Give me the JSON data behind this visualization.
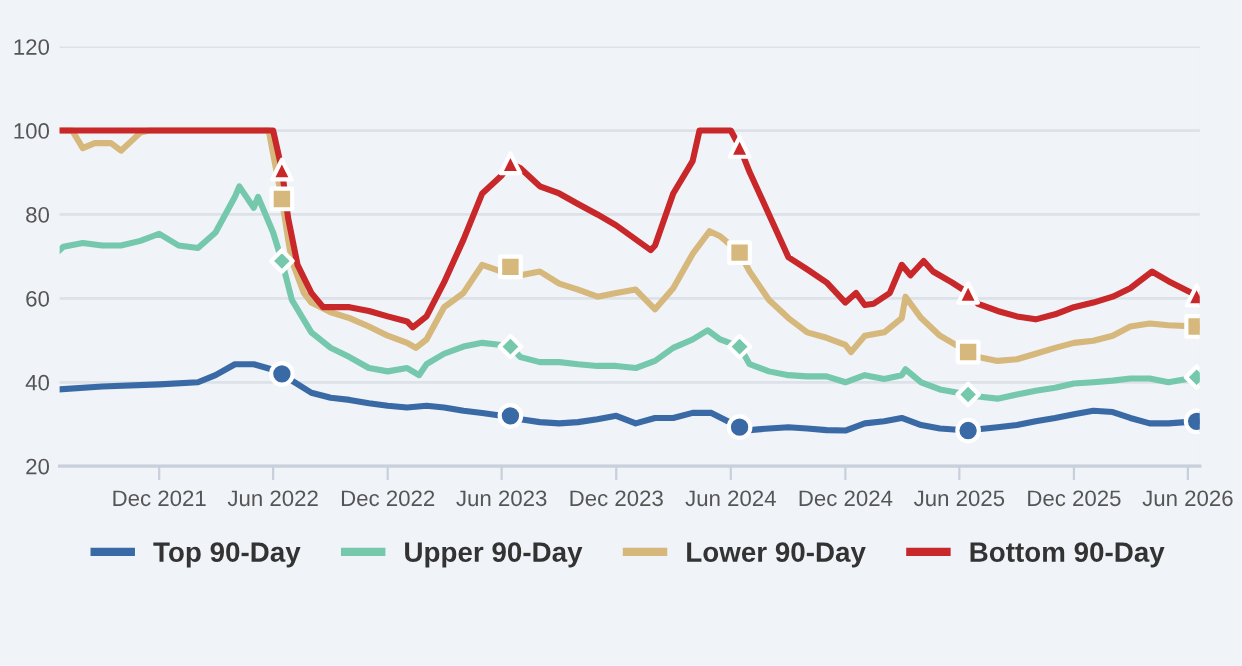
{
  "chart_data": {
    "type": "line",
    "grid": "y",
    "legend": "bottom",
    "line_style": "solid",
    "marker": "none",
    "xlim": [
      "2021-06-25",
      "2026-06-20"
    ],
    "ylim": [
      20,
      120
    ],
    "yticks": [
      20,
      40,
      60,
      80,
      100,
      120
    ],
    "xticks": [
      {
        "value": "2021-12-01",
        "label": "Dec 2021"
      },
      {
        "value": "2022-06-01",
        "label": "Jun 2022"
      },
      {
        "value": "2022-12-01",
        "label": "Dec 2022"
      },
      {
        "value": "2023-06-01",
        "label": "Jun 2023"
      },
      {
        "value": "2023-12-01",
        "label": "Dec 2023"
      },
      {
        "value": "2024-06-01",
        "label": "Jun 2024"
      },
      {
        "value": "2024-12-01",
        "label": "Dec 2024"
      },
      {
        "value": "2025-06-01",
        "label": "Jun 2025"
      },
      {
        "value": "2025-12-01",
        "label": "Dec 2025"
      },
      {
        "value": "2026-06-01",
        "label": "Jun 2026"
      }
    ],
    "series": [
      {
        "name": "Top 90-Day",
        "color": "#3a6aa6",
        "x": [
          "2021-06-25",
          "2021-09-01",
          "2021-12-01",
          "2022-02-01",
          "2022-03-01",
          "2022-04-01",
          "2022-05-01",
          "2022-06-01",
          "2022-07-01",
          "2022-08-01",
          "2022-09-01",
          "2022-10-01",
          "2022-11-01",
          "2022-12-01",
          "2023-01-01",
          "2023-02-01",
          "2023-03-01",
          "2023-04-01",
          "2023-05-01",
          "2023-06-01",
          "2023-07-01",
          "2023-08-01",
          "2023-09-01",
          "2023-10-01",
          "2023-11-01",
          "2023-12-01",
          "2024-01-01",
          "2024-02-01",
          "2024-03-01",
          "2024-04-01",
          "2024-05-01",
          "2024-06-15",
          "2024-07-01",
          "2024-08-01",
          "2024-09-01",
          "2024-10-01",
          "2024-11-01",
          "2024-12-01",
          "2025-01-01",
          "2025-02-01",
          "2025-03-01",
          "2025-04-01",
          "2025-05-01",
          "2025-06-15",
          "2025-07-01",
          "2025-08-01",
          "2025-09-01",
          "2025-10-01",
          "2025-11-01",
          "2025-12-01",
          "2026-01-01",
          "2026-02-01",
          "2026-03-01",
          "2026-04-01",
          "2026-05-01",
          "2026-06-15"
        ],
        "values": [
          38.3,
          39,
          39.5,
          40,
          41.7,
          44.3,
          44.3,
          43,
          40.4,
          37.5,
          36.3,
          35.8,
          35,
          34.4,
          34,
          34.4,
          34,
          33.2,
          32.7,
          32,
          31.2,
          30.5,
          30.2,
          30.5,
          31.2,
          32,
          30.2,
          31.5,
          31.5,
          32.7,
          32.7,
          29.3,
          28.6,
          29,
          29.3,
          29,
          28.6,
          28.5,
          30.2,
          30.7,
          31.5,
          29.8,
          29,
          28.5,
          28.8,
          29.3,
          29.8,
          30.7,
          31.5,
          32.4,
          33.2,
          32.9,
          31.5,
          30.2,
          30.2,
          30.7
        ]
      },
      {
        "name": "Upper 90-Day",
        "color": "#76c8ad",
        "x": [
          "2021-06-25",
          "2021-07-01",
          "2021-08-01",
          "2021-09-01",
          "2021-10-01",
          "2021-11-01",
          "2021-12-01",
          "2022-01-01",
          "2022-02-01",
          "2022-03-01",
          "2022-04-01",
          "2022-04-08",
          "2022-05-01",
          "2022-05-08",
          "2022-06-01",
          "2022-06-15",
          "2022-07-01",
          "2022-08-01",
          "2022-09-01",
          "2022-10-01",
          "2022-11-01",
          "2022-12-01",
          "2023-01-01",
          "2023-01-20",
          "2023-02-01",
          "2023-03-01",
          "2023-04-01",
          "2023-05-01",
          "2023-06-01",
          "2023-06-15",
          "2023-07-01",
          "2023-08-01",
          "2023-09-01",
          "2023-10-01",
          "2023-11-01",
          "2023-12-01",
          "2024-01-01",
          "2024-02-01",
          "2024-03-01",
          "2024-04-01",
          "2024-04-25",
          "2024-05-15",
          "2024-06-15",
          "2024-07-01",
          "2024-08-01",
          "2024-09-01",
          "2024-10-01",
          "2024-11-01",
          "2024-12-01",
          "2025-01-01",
          "2025-02-01",
          "2025-03-01",
          "2025-03-07",
          "2025-04-01",
          "2025-05-01",
          "2025-06-15",
          "2025-07-01",
          "2025-08-01",
          "2025-09-01",
          "2025-10-01",
          "2025-11-01",
          "2025-12-01",
          "2026-01-01",
          "2026-02-01",
          "2026-03-01",
          "2026-04-01",
          "2026-05-01",
          "2026-06-15"
        ],
        "values": [
          71.5,
          72.3,
          73.2,
          72.6,
          72.6,
          73.7,
          75.4,
          72.6,
          72,
          75.7,
          84.2,
          86.7,
          81.6,
          84.2,
          75.7,
          68.9,
          59.6,
          51.9,
          48.2,
          46,
          43.4,
          42.6,
          43.4,
          41.7,
          44.3,
          46.8,
          48.5,
          49.4,
          48.9,
          48.5,
          46,
          44.8,
          44.8,
          44.3,
          43.9,
          43.9,
          43.4,
          45.1,
          48.2,
          50.2,
          52.4,
          50.2,
          48.5,
          44.3,
          42.6,
          41.7,
          41.4,
          41.4,
          40,
          41.7,
          40.8,
          41.7,
          43.1,
          40,
          38.3,
          37.1,
          36.6,
          36.1,
          37.1,
          38,
          38.7,
          39.7,
          40,
          40.4,
          40.9,
          40.9,
          40,
          41.2
        ]
      },
      {
        "name": "Lower 90-Day",
        "color": "#d6b87c",
        "x": [
          "2021-06-25",
          "2021-07-15",
          "2021-08-01",
          "2021-08-20",
          "2021-09-15",
          "2021-10-01",
          "2021-11-01",
          "2021-11-15",
          "2022-05-25",
          "2022-06-01",
          "2022-06-15",
          "2022-06-25",
          "2022-07-01",
          "2022-07-20",
          "2022-08-01",
          "2022-09-01",
          "2022-10-01",
          "2022-11-01",
          "2022-12-01",
          "2023-01-01",
          "2023-01-15",
          "2023-02-01",
          "2023-03-01",
          "2023-04-01",
          "2023-05-01",
          "2023-06-01",
          "2023-06-15",
          "2023-07-01",
          "2023-08-01",
          "2023-09-01",
          "2023-10-01",
          "2023-11-01",
          "2023-12-01",
          "2024-01-01",
          "2024-02-01",
          "2024-03-01",
          "2024-04-01",
          "2024-04-28",
          "2024-05-15",
          "2024-06-15",
          "2024-07-01",
          "2024-08-01",
          "2024-09-01",
          "2024-10-01",
          "2024-11-01",
          "2024-12-01",
          "2024-12-10",
          "2025-01-01",
          "2025-02-01",
          "2025-03-01",
          "2025-03-07",
          "2025-04-01",
          "2025-05-01",
          "2025-06-15",
          "2025-07-01",
          "2025-08-01",
          "2025-09-01",
          "2025-10-01",
          "2025-11-01",
          "2025-12-01",
          "2026-01-01",
          "2026-02-01",
          "2026-03-01",
          "2026-04-01",
          "2026-05-01",
          "2026-06-15"
        ],
        "values": [
          100,
          100,
          95.8,
          97,
          97,
          95.2,
          99.5,
          100,
          100,
          94.4,
          83.7,
          74,
          68.9,
          61.3,
          59,
          56.7,
          55.3,
          53.3,
          51.1,
          49.4,
          48.2,
          50.2,
          57.9,
          61.3,
          68,
          66.4,
          67.5,
          65.5,
          66.4,
          63.5,
          62.1,
          60.4,
          61.3,
          62.1,
          57.4,
          62.4,
          70.6,
          76,
          74.8,
          70.9,
          66.4,
          59.6,
          55.3,
          51.9,
          50.6,
          48.9,
          47.2,
          51.1,
          51.9,
          55.3,
          60.4,
          55.3,
          51.1,
          47.2,
          46,
          45.1,
          45.5,
          46.8,
          48.2,
          49.4,
          49.9,
          51.1,
          53.3,
          54,
          53.6,
          53.3
        ]
      },
      {
        "name": "Bottom 90-Day",
        "color": "#c8282a",
        "x": [
          "2021-06-25",
          "2022-06-01",
          "2022-06-15",
          "2022-06-25",
          "2022-07-10",
          "2022-08-01",
          "2022-08-20",
          "2022-10-01",
          "2022-11-01",
          "2022-12-01",
          "2023-01-01",
          "2023-01-10",
          "2023-02-01",
          "2023-03-01",
          "2023-04-01",
          "2023-05-01",
          "2023-06-01",
          "2023-06-15",
          "2023-07-01",
          "2023-08-01",
          "2023-09-01",
          "2023-10-01",
          "2023-11-01",
          "2023-12-01",
          "2024-01-25",
          "2024-02-01",
          "2024-03-01",
          "2024-04-01",
          "2024-04-12",
          "2024-06-01",
          "2024-06-15",
          "2024-07-01",
          "2024-08-01",
          "2024-09-01",
          "2024-10-01",
          "2024-11-01",
          "2024-12-01",
          "2024-12-18",
          "2025-01-01",
          "2025-01-15",
          "2025-02-10",
          "2025-03-01",
          "2025-03-15",
          "2025-04-05",
          "2025-04-20",
          "2025-05-20",
          "2025-06-15",
          "2025-07-01",
          "2025-08-01",
          "2025-09-01",
          "2025-10-01",
          "2025-11-01",
          "2025-12-01",
          "2026-01-01",
          "2026-02-01",
          "2026-03-01",
          "2026-04-05",
          "2026-04-15",
          "2026-05-01",
          "2026-06-15"
        ],
        "values": [
          100,
          100,
          90.7,
          79.1,
          68,
          61.3,
          57.9,
          57.9,
          57,
          55.7,
          54.5,
          53.1,
          55.7,
          63.8,
          74,
          85,
          89.3,
          92.2,
          91,
          86.7,
          85,
          82.5,
          80,
          77.4,
          71.5,
          72.6,
          85,
          92.7,
          100,
          100,
          96.1,
          90.1,
          80,
          69.8,
          66.9,
          63.8,
          59,
          61.3,
          58.4,
          58.7,
          61.3,
          68,
          65.5,
          68.9,
          66.4,
          63.8,
          61.3,
          58.7,
          57,
          55.7,
          55,
          56.2,
          57.9,
          59,
          60.4,
          62.4,
          66.4,
          65.5,
          64.1,
          60.7
        ]
      },
      {
        "type": "scatter",
        "marker": "circle",
        "color": "#3a6aa6",
        "x": [
          "2022-06-15",
          "2023-06-15",
          "2024-06-15",
          "2025-06-15",
          "2026-06-15"
        ],
        "values": [
          42,
          32,
          29.3,
          28.5,
          30.7
        ]
      },
      {
        "type": "scatter",
        "marker": "diamond",
        "color": "#76c8ad",
        "x": [
          "2022-06-15",
          "2023-06-15",
          "2024-06-15",
          "2025-06-15",
          "2026-06-15"
        ],
        "values": [
          68.9,
          48.5,
          48.5,
          37.1,
          41.2
        ]
      },
      {
        "type": "scatter",
        "marker": "square",
        "color": "#d6b87c",
        "x": [
          "2022-06-15",
          "2023-06-15",
          "2024-06-15",
          "2025-06-15",
          "2026-06-15"
        ],
        "values": [
          83.7,
          67.5,
          70.9,
          47.2,
          53.3
        ]
      },
      {
        "type": "scatter",
        "marker": "triangle",
        "color": "#c8282a",
        "x": [
          "2022-06-15",
          "2023-06-15",
          "2024-06-15",
          "2025-06-15",
          "2026-06-15"
        ],
        "values": [
          90.7,
          92.2,
          96.1,
          61.3,
          60.7
        ]
      }
    ]
  }
}
